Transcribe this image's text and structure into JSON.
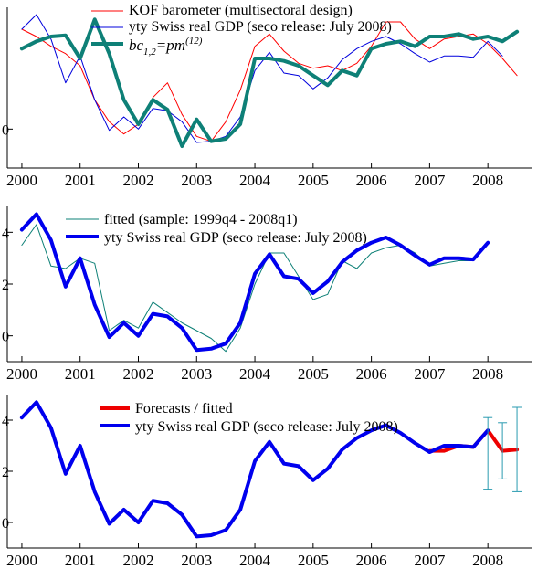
{
  "chart_data": [
    {
      "type": "line",
      "title": "",
      "xlabel": "",
      "ylabel": "",
      "xlim": [
        1999.75,
        2008.75
      ],
      "ylim": [
        -1.6,
        5.0
      ],
      "x_ticks": [
        "2000",
        "2001",
        "2002",
        "2003",
        "2004",
        "2005",
        "2006",
        "2007",
        "2008"
      ],
      "y_ticks": [
        "0"
      ],
      "legend_position": "top-center",
      "series": [
        {
          "name": "KOF barometer (multisectoral design)",
          "color": "#ff0000",
          "x": [
            2000.0,
            2000.25,
            2000.5,
            2000.75,
            2001.0,
            2001.25,
            2001.5,
            2001.75,
            2002.0,
            2002.25,
            2002.5,
            2002.75,
            2003.0,
            2003.25,
            2003.5,
            2003.75,
            2004.0,
            2004.25,
            2004.5,
            2004.75,
            2005.0,
            2005.25,
            2005.5,
            2005.75,
            2006.0,
            2006.25,
            2006.5,
            2006.75,
            2007.0,
            2007.25,
            2007.5,
            2007.75,
            2008.0,
            2008.25,
            2008.5
          ],
          "values": [
            4.1,
            3.8,
            3.4,
            3.1,
            2.6,
            1.2,
            0.3,
            -0.2,
            0.2,
            1.3,
            1.9,
            0.6,
            -0.3,
            -0.5,
            0.3,
            1.6,
            3.4,
            3.9,
            3.2,
            2.7,
            2.5,
            2.6,
            2.4,
            2.7,
            3.4,
            4.4,
            4.4,
            3.7,
            3.3,
            3.7,
            3.8,
            3.9,
            3.5,
            2.9,
            2.2
          ]
        },
        {
          "name": "yty Swiss real GDP (seco release: July 2008)",
          "color": "#0000dd",
          "x": [
            2000.0,
            2000.25,
            2000.5,
            2000.75,
            2001.0,
            2001.25,
            2001.5,
            2001.75,
            2002.0,
            2002.25,
            2002.5,
            2002.75,
            2003.0,
            2003.25,
            2003.5,
            2003.75,
            2004.0,
            2004.25,
            2004.5,
            2004.75,
            2005.0,
            2005.25,
            2005.5,
            2005.75,
            2006.0,
            2006.25,
            2006.5,
            2006.75,
            2007.0,
            2007.25,
            2007.5,
            2007.75,
            2008.0,
            2008.25
          ],
          "values": [
            4.1,
            4.7,
            3.7,
            1.9,
            3.0,
            1.2,
            -0.05,
            0.5,
            0.0,
            0.85,
            0.75,
            0.3,
            -0.55,
            -0.5,
            -0.3,
            0.5,
            2.4,
            3.15,
            2.3,
            2.2,
            1.65,
            2.1,
            2.85,
            3.3,
            3.6,
            3.8,
            3.5,
            3.1,
            2.75,
            3.0,
            3.0,
            2.95,
            3.6,
            3.0
          ]
        },
        {
          "name": "bc12=pm(12)",
          "color": "#0e8077",
          "x": [
            2000.0,
            2000.25,
            2000.5,
            2000.75,
            2001.0,
            2001.25,
            2001.5,
            2001.75,
            2002.0,
            2002.25,
            2002.5,
            2002.75,
            2003.0,
            2003.25,
            2003.5,
            2003.75,
            2004.0,
            2004.25,
            2004.5,
            2004.75,
            2005.0,
            2005.25,
            2005.5,
            2005.75,
            2006.0,
            2006.25,
            2006.5,
            2006.75,
            2007.0,
            2007.25,
            2007.5,
            2007.75,
            2008.0,
            2008.25,
            2008.5
          ],
          "values": [
            3.3,
            3.6,
            3.8,
            3.85,
            2.9,
            4.5,
            3.1,
            1.2,
            0.2,
            1.2,
            0.8,
            -0.7,
            0.4,
            -0.5,
            -0.4,
            0.2,
            2.9,
            2.9,
            2.8,
            2.6,
            2.2,
            1.8,
            2.4,
            2.2,
            3.3,
            3.5,
            3.6,
            3.4,
            3.8,
            3.8,
            3.9,
            3.7,
            3.8,
            3.6,
            4.0
          ]
        }
      ]
    },
    {
      "type": "line",
      "title": "",
      "xlabel": "",
      "ylabel": "",
      "xlim": [
        1999.75,
        2008.75
      ],
      "ylim": [
        -1.0,
        5.0
      ],
      "x_ticks": [
        "2000",
        "2001",
        "2002",
        "2003",
        "2004",
        "2005",
        "2006",
        "2007",
        "2008"
      ],
      "y_ticks": [
        "0",
        "2",
        "4"
      ],
      "legend_position": "top-center",
      "series": [
        {
          "name": "fitted (sample: 1999q4 - 2008q1)",
          "color": "#0e8077",
          "x": [
            2000.0,
            2000.25,
            2000.5,
            2000.75,
            2001.0,
            2001.25,
            2001.5,
            2001.75,
            2002.0,
            2002.25,
            2002.5,
            2002.75,
            2003.0,
            2003.25,
            2003.5,
            2003.75,
            2004.0,
            2004.25,
            2004.5,
            2004.75,
            2005.0,
            2005.25,
            2005.5,
            2005.75,
            2006.0,
            2006.25,
            2006.5,
            2006.75,
            2007.0,
            2007.25,
            2007.5,
            2007.75,
            2008.0
          ],
          "values": [
            3.5,
            4.3,
            2.7,
            2.6,
            3.0,
            2.8,
            0.2,
            0.6,
            0.3,
            1.3,
            0.9,
            0.5,
            0.2,
            -0.1,
            -0.6,
            0.3,
            2.0,
            3.2,
            3.2,
            2.3,
            1.4,
            1.6,
            2.9,
            2.6,
            3.2,
            3.4,
            3.5,
            3.2,
            2.7,
            2.8,
            2.9,
            2.9,
            3.6
          ]
        },
        {
          "name": "yty Swiss real GDP (seco release: July 2008)",
          "color": "#0000ee",
          "x": [
            2000.0,
            2000.25,
            2000.5,
            2000.75,
            2001.0,
            2001.25,
            2001.5,
            2001.75,
            2002.0,
            2002.25,
            2002.5,
            2002.75,
            2003.0,
            2003.25,
            2003.5,
            2003.75,
            2004.0,
            2004.25,
            2004.5,
            2004.75,
            2005.0,
            2005.25,
            2005.5,
            2005.75,
            2006.0,
            2006.25,
            2006.5,
            2006.75,
            2007.0,
            2007.25,
            2007.5,
            2007.75,
            2008.0
          ],
          "values": [
            4.1,
            4.7,
            3.7,
            1.9,
            3.0,
            1.2,
            -0.05,
            0.5,
            0.0,
            0.85,
            0.75,
            0.3,
            -0.55,
            -0.5,
            -0.3,
            0.5,
            2.4,
            3.15,
            2.3,
            2.2,
            1.65,
            2.1,
            2.85,
            3.3,
            3.6,
            3.8,
            3.5,
            3.1,
            2.75,
            3.0,
            3.0,
            2.95,
            3.6
          ]
        }
      ]
    },
    {
      "type": "line",
      "title": "",
      "xlabel": "",
      "ylabel": "",
      "xlim": [
        1999.75,
        2008.75
      ],
      "ylim": [
        -1.0,
        5.0
      ],
      "x_ticks": [
        "2000",
        "2001",
        "2002",
        "2003",
        "2004",
        "2005",
        "2006",
        "2007",
        "2008"
      ],
      "y_ticks": [
        "0",
        "2",
        "4"
      ],
      "legend_position": "top-center",
      "series": [
        {
          "name": "Forecasts / fitted",
          "color": "#ee0000",
          "x": [
            2007.0,
            2007.25,
            2007.5,
            2007.75,
            2008.0,
            2008.25,
            2008.5
          ],
          "values": [
            2.8,
            2.8,
            3.0,
            2.95,
            3.6,
            2.8,
            2.85
          ]
        },
        {
          "name": "yty Swiss real GDP (seco release: July 2008)",
          "color": "#0000ee",
          "x": [
            2000.0,
            2000.25,
            2000.5,
            2000.75,
            2001.0,
            2001.25,
            2001.5,
            2001.75,
            2002.0,
            2002.25,
            2002.5,
            2002.75,
            2003.0,
            2003.25,
            2003.5,
            2003.75,
            2004.0,
            2004.25,
            2004.5,
            2004.75,
            2005.0,
            2005.25,
            2005.5,
            2005.75,
            2006.0,
            2006.25,
            2006.5,
            2006.75,
            2007.0,
            2007.25,
            2007.5,
            2007.75,
            2008.0
          ],
          "values": [
            4.1,
            4.7,
            3.7,
            1.9,
            3.0,
            1.2,
            -0.05,
            0.5,
            0.0,
            0.85,
            0.75,
            0.3,
            -0.55,
            -0.5,
            -0.3,
            0.5,
            2.4,
            3.15,
            2.3,
            2.2,
            1.65,
            2.1,
            2.85,
            3.3,
            3.6,
            3.8,
            3.5,
            3.1,
            2.75,
            3.0,
            3.0,
            2.95,
            3.6
          ]
        }
      ],
      "error_bars": {
        "color": "#2a9bb0",
        "x": [
          2008.0,
          2008.25,
          2008.5
        ],
        "low": [
          1.3,
          1.7,
          1.2
        ],
        "high": [
          4.1,
          3.9,
          4.5
        ]
      }
    }
  ]
}
